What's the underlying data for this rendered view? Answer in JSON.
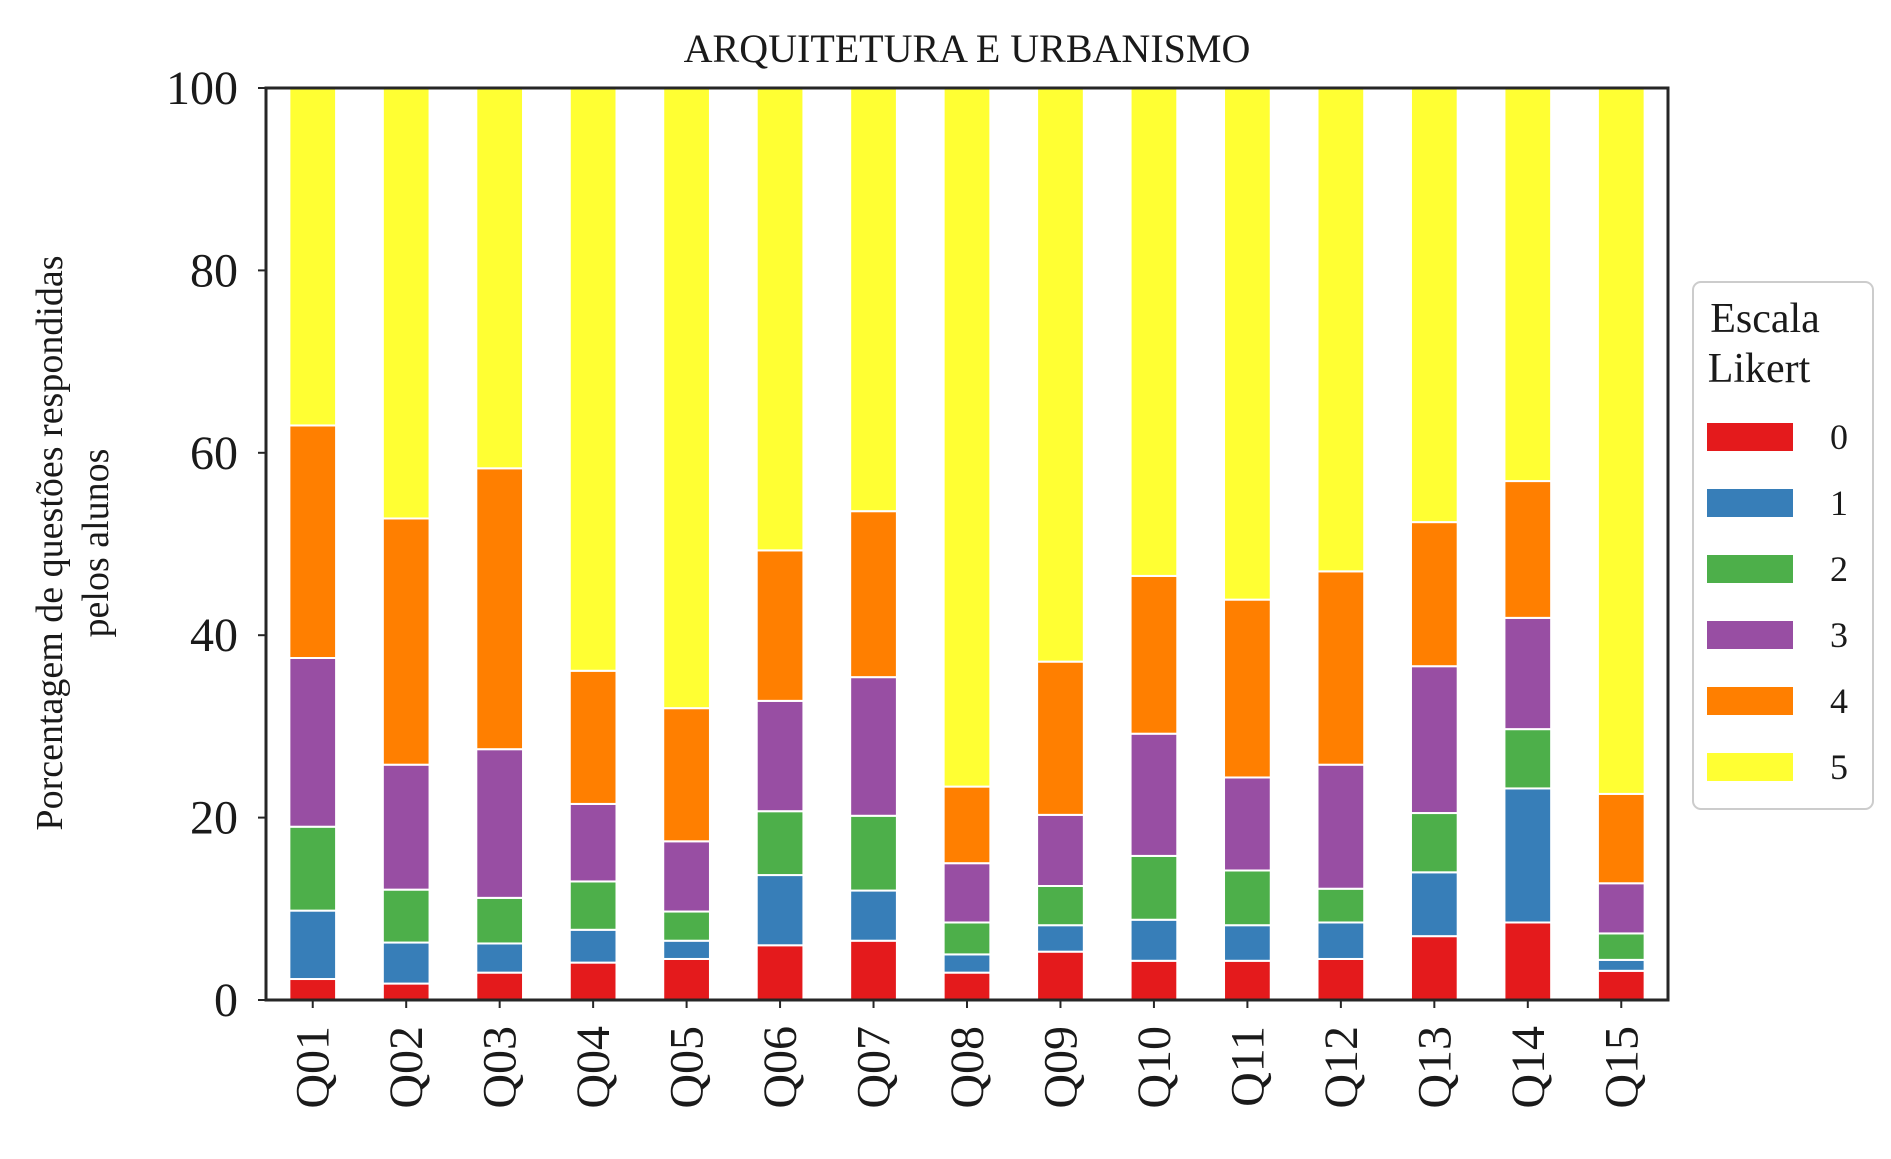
{
  "chart_data": {
    "type": "bar",
    "stacked": true,
    "title": "ARQUITETURA E URBANISMO",
    "xlabel": "",
    "ylabel_lines": [
      "Porcentagem de questões respondidas",
      "pelos alunos"
    ],
    "ylim": [
      0,
      100
    ],
    "yticks": [
      0,
      20,
      40,
      60,
      80,
      100
    ],
    "grid": false,
    "categories": [
      "Q01",
      "Q02",
      "Q03",
      "Q04",
      "Q05",
      "Q06",
      "Q07",
      "Q08",
      "Q09",
      "Q10",
      "Q11",
      "Q12",
      "Q13",
      "Q14",
      "Q15"
    ],
    "legend": {
      "title_lines": [
        "Escala",
        "Likert"
      ],
      "placement": "right"
    },
    "series": [
      {
        "name": "0",
        "color": "#e41a1c",
        "values": [
          2.3,
          1.8,
          3.0,
          4.1,
          4.5,
          6.0,
          6.5,
          3.0,
          5.3,
          4.3,
          4.3,
          4.5,
          7.0,
          8.5,
          3.2
        ]
      },
      {
        "name": "1",
        "color": "#377eb8",
        "values": [
          7.5,
          4.5,
          3.2,
          3.6,
          2.0,
          7.7,
          5.5,
          2.0,
          2.9,
          4.5,
          3.9,
          4.0,
          7.0,
          14.7,
          1.2
        ]
      },
      {
        "name": "2",
        "color": "#4daf4a",
        "values": [
          9.2,
          5.8,
          5.0,
          5.3,
          3.2,
          7.0,
          8.2,
          3.5,
          4.3,
          7.0,
          6.0,
          3.7,
          6.5,
          6.5,
          2.9
        ]
      },
      {
        "name": "3",
        "color": "#984ea3",
        "values": [
          18.5,
          13.7,
          16.3,
          8.5,
          7.7,
          12.1,
          15.2,
          6.5,
          7.8,
          13.4,
          10.2,
          13.6,
          16.1,
          12.2,
          5.5
        ]
      },
      {
        "name": "4",
        "color": "#ff7f00",
        "values": [
          25.5,
          27.0,
          30.8,
          14.6,
          14.6,
          16.5,
          18.2,
          8.4,
          16.8,
          17.3,
          19.5,
          21.2,
          15.8,
          15.0,
          9.8
        ]
      },
      {
        "name": "5",
        "color": "#ffff33",
        "values": [
          37.0,
          47.2,
          41.7,
          63.9,
          68.0,
          50.7,
          46.4,
          76.6,
          62.9,
          53.5,
          56.1,
          53.0,
          47.6,
          43.1,
          77.4
        ]
      }
    ]
  }
}
